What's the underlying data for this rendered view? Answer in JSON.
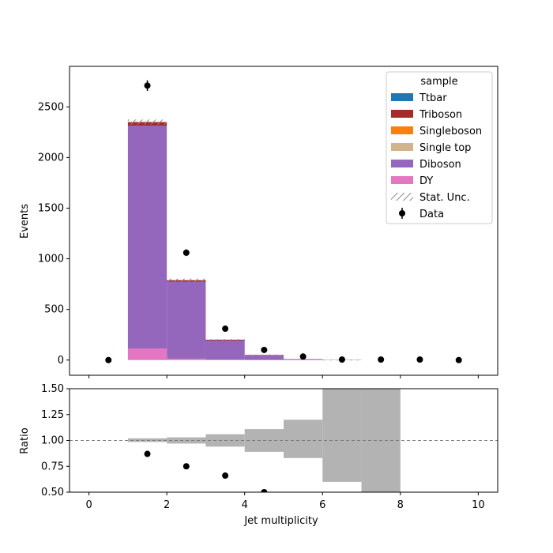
{
  "chart_data": {
    "type": "histogram-stack-with-ratio",
    "x_edges": [
      0,
      1,
      2,
      3,
      4,
      5,
      6,
      7,
      8,
      9,
      10
    ],
    "xlabel": "Jet multiplicity",
    "xlim": [
      -0.5,
      10.5
    ],
    "xticks": [
      "0",
      "2",
      "4",
      "6",
      "8",
      "10"
    ],
    "top": {
      "ylabel": "Events",
      "ylim": [
        -150,
        2900
      ],
      "yticks": [
        "0",
        "500",
        "1000",
        "1500",
        "2000",
        "2500"
      ],
      "stack": [
        {
          "name": "DY",
          "color": "#e377c2",
          "values": [
            0,
            115,
            12,
            3,
            1,
            0.5,
            0.3,
            0,
            0,
            0
          ]
        },
        {
          "name": "Diboson",
          "color": "#9467bd",
          "values": [
            0,
            2200,
            760,
            190,
            47,
            8,
            2,
            0,
            0,
            0
          ]
        },
        {
          "name": "Single top",
          "color": "#d2b48c",
          "values": [
            0,
            0,
            0,
            0,
            0,
            0,
            0,
            0,
            0,
            0
          ]
        },
        {
          "name": "Singleboson",
          "color": "#ff7f0e",
          "values": [
            0,
            0,
            0,
            0,
            0,
            0,
            0,
            0,
            0,
            0
          ]
        },
        {
          "name": "Triboson",
          "color": "#a52a2a",
          "values": [
            0,
            35,
            17,
            8,
            3,
            1,
            0.5,
            0,
            0,
            0
          ]
        },
        {
          "name": "Ttbar",
          "color": "#1f77b4",
          "values": [
            0,
            0,
            0,
            0,
            0,
            0,
            0,
            0,
            0,
            0
          ]
        }
      ],
      "stat_unc": [
        0,
        25,
        15,
        6,
        3,
        1.5,
        0.8,
        0,
        0,
        0
      ],
      "data": {
        "name": "Data",
        "x": [
          0.5,
          1.5,
          2.5,
          3.5,
          4.5,
          5.5,
          6.5,
          7.5,
          8.5,
          9.5
        ],
        "y": [
          0,
          2710,
          1060,
          310,
          100,
          35,
          5,
          5,
          5,
          0
        ],
        "err": [
          0,
          52,
          33,
          18,
          10,
          6,
          2,
          2,
          2,
          0
        ]
      },
      "legend": {
        "title": "sample",
        "position": "top-right",
        "entries": [
          "Ttbar",
          "Triboson",
          "Singleboson",
          "Single top",
          "Diboson",
          "DY",
          "Stat. Unc.",
          "Data"
        ]
      }
    },
    "bottom": {
      "ylabel": "Ratio",
      "ylim": [
        0.5,
        1.5
      ],
      "yticks": [
        "0.50",
        "0.75",
        "1.00",
        "1.25",
        "1.50"
      ],
      "reference_line": 1.0,
      "unc_band": [
        {
          "x0": 1,
          "x1": 2,
          "lo": 0.985,
          "hi": 1.02
        },
        {
          "x0": 2,
          "x1": 3,
          "lo": 0.97,
          "hi": 1.03
        },
        {
          "x0": 3,
          "x1": 4,
          "lo": 0.94,
          "hi": 1.06
        },
        {
          "x0": 4,
          "x1": 5,
          "lo": 0.89,
          "hi": 1.11
        },
        {
          "x0": 5,
          "x1": 6,
          "lo": 0.83,
          "hi": 1.2
        },
        {
          "x0": 6,
          "x1": 7,
          "lo": 0.6,
          "hi": 1.5
        },
        {
          "x0": 7,
          "x1": 8,
          "lo": 0.5,
          "hi": 1.5
        }
      ],
      "points": {
        "x": [
          1.5,
          2.5,
          3.5,
          4.5
        ],
        "y": [
          0.87,
          0.75,
          0.66,
          0.5
        ]
      }
    }
  }
}
